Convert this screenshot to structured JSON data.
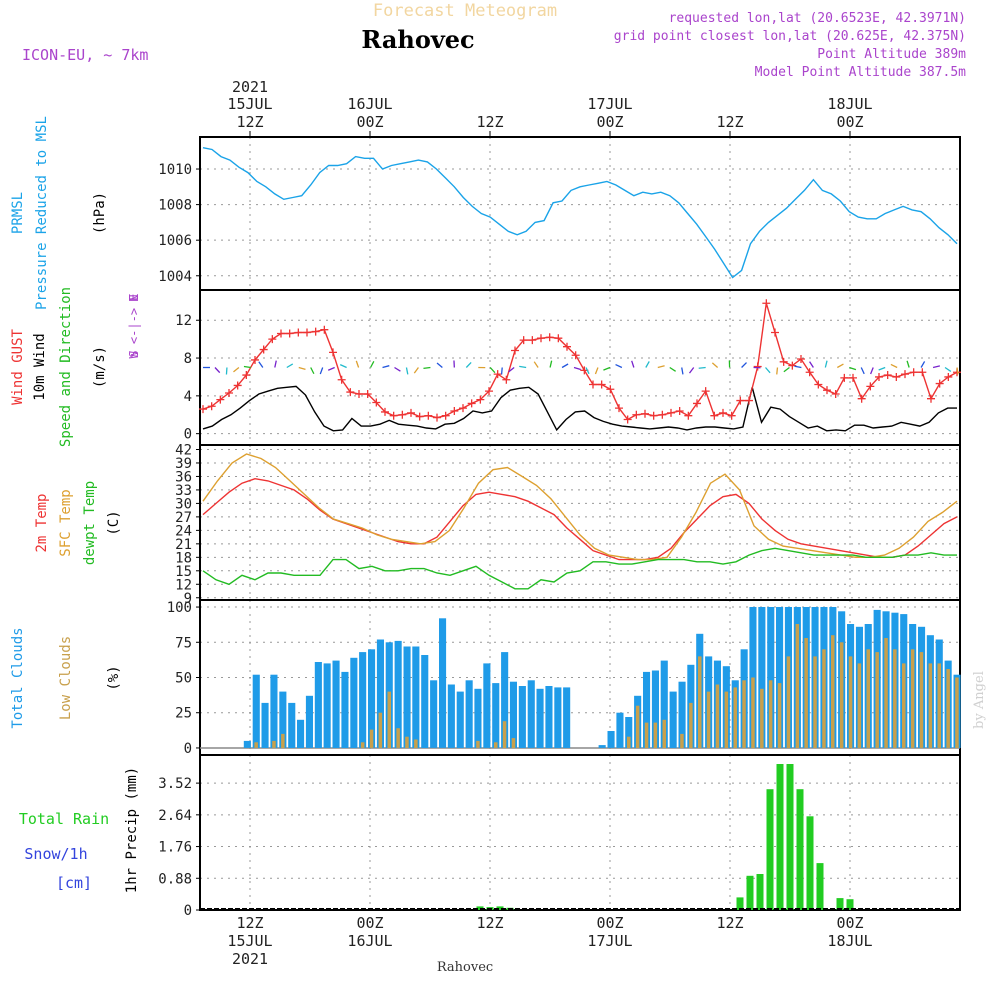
{
  "header": {
    "title": "Forecast Meteogram",
    "location": "Rahovec",
    "model": "ICON-EU, ~ 7km",
    "requested": "requested lon,lat (20.6523E, 42.3971N)",
    "grid": "grid point closest lon,lat (20.625E, 42.375N)",
    "point_alt": "Point Altitude 389m",
    "model_alt": "Model Point Altitude 387.5m",
    "footer": "Rahovec",
    "credit": "by Angel"
  },
  "colors": {
    "pressure": "#1aa3e8",
    "gust": "#ee3333",
    "wind": "#000000",
    "wind_green": "#22bb22",
    "temp2m": "#ee3333",
    "sfc": "#dda030",
    "dew": "#22bb22",
    "cloud_total": "#1f9be8",
    "cloud_low": "#c8a04c",
    "rain": "#22cc22",
    "snow": "#3344dd",
    "purple": "#aa44cc"
  },
  "time_axis": {
    "top": [
      {
        "t": 0,
        "l1": "2021",
        "l2": "15JUL",
        "l3": "12Z"
      },
      {
        "t": 12,
        "l2": "16JUL",
        "l3": "00Z"
      },
      {
        "t": 24,
        "l3": "12Z"
      },
      {
        "t": 36,
        "l2": "17JUL",
        "l3": "00Z"
      },
      {
        "t": 48,
        "l3": "12Z"
      },
      {
        "t": 60,
        "l2": "18JUL",
        "l3": "00Z"
      }
    ],
    "bottom": [
      {
        "t": 0,
        "l1": "12Z",
        "l2": "15JUL",
        "l3": "2021"
      },
      {
        "t": 12,
        "l1": "00Z",
        "l2": "16JUL"
      },
      {
        "t": 24,
        "l1": "12Z"
      },
      {
        "t": 36,
        "l1": "00Z",
        "l2": "17JUL"
      },
      {
        "t": 48,
        "l1": "12Z"
      },
      {
        "t": 60,
        "l1": "00Z",
        "l2": "18JUL"
      }
    ]
  },
  "chart_data": [
    {
      "type": "line",
      "panel": "pressure",
      "ylabel_lines": [
        "PRMSL",
        "Pressure Reduced to MSL"
      ],
      "unit": "(hPa)",
      "ylim": [
        1003.2,
        1011.8
      ],
      "yticks": [
        1004,
        1006,
        1008,
        1010
      ],
      "x_hours_start": -5,
      "x_hours_end": 71,
      "series": [
        {
          "values": [
            1011.2,
            1011.1,
            1010.7,
            1010.5,
            1010.1,
            1009.8,
            1009.3,
            1009.0,
            1008.6,
            1008.3,
            1008.4,
            1008.5,
            1009.1,
            1009.8,
            1010.2,
            1010.2,
            1010.3,
            1010.7,
            1010.6,
            1010.6,
            1010.0,
            1010.2,
            1010.3,
            1010.4,
            1010.5,
            1010.4,
            1010.0,
            1009.5,
            1009.0,
            1008.4,
            1007.9,
            1007.5,
            1007.3,
            1006.9,
            1006.5,
            1006.3,
            1006.5,
            1007.0,
            1007.1,
            1008.1,
            1008.2,
            1008.8,
            1009.0,
            1009.1,
            1009.2,
            1009.3,
            1009.1,
            1008.8,
            1008.5,
            1008.7,
            1008.6,
            1008.7,
            1008.5,
            1008.1,
            1007.5,
            1006.9,
            1006.2,
            1005.5,
            1004.7,
            1003.9,
            1004.3,
            1005.8,
            1006.5,
            1007.0,
            1007.4,
            1007.8,
            1008.3,
            1008.8,
            1009.4,
            1008.8,
            1008.6,
            1008.2,
            1007.6,
            1007.3,
            1007.2,
            1007.2,
            1007.5,
            1007.7,
            1007.9,
            1007.7,
            1007.6,
            1007.2,
            1006.7,
            1006.3,
            1005.8
          ]
        }
      ]
    },
    {
      "type": "line",
      "panel": "wind",
      "ylabel_lines": [
        "Wind GUST",
        "10m Wind",
        "Speed and Direction"
      ],
      "unit": "(m/s)",
      "compass": [
        "N",
        "W <-|-> E",
        "S"
      ],
      "ylim": [
        -1.2,
        15.2
      ],
      "yticks": [
        0,
        4,
        8,
        12
      ],
      "series": [
        {
          "name": "Wind GUST",
          "values": [
            2.6,
            2.9,
            3.6,
            4.3,
            5.1,
            6.2,
            7.8,
            8.9,
            10.0,
            10.6,
            10.6,
            10.7,
            10.7,
            10.8,
            11.0,
            8.6,
            5.7,
            4.4,
            4.2,
            4.2,
            3.3,
            2.3,
            1.9,
            2.0,
            2.2,
            1.8,
            1.9,
            1.7,
            1.9,
            2.4,
            2.7,
            3.2,
            3.6,
            4.5,
            6.3,
            5.7,
            8.8,
            9.9,
            9.9,
            10.1,
            10.2,
            10.1,
            9.2,
            8.3,
            6.7,
            5.2,
            5.2,
            4.7,
            2.7,
            1.5,
            2.0,
            2.1,
            1.9,
            2.0,
            2.2,
            2.4,
            1.9,
            3.2,
            4.5,
            1.9,
            2.2,
            1.9,
            3.5,
            3.5,
            7.1,
            13.8,
            10.7,
            7.6,
            7.2,
            7.9,
            6.5,
            5.2,
            4.6,
            4.2,
            5.9,
            5.9,
            3.7,
            5.0,
            6.0,
            6.2,
            6.0,
            6.3,
            6.5,
            6.5,
            3.7,
            5.3,
            6.0,
            6.5
          ]
        },
        {
          "name": "10m Wind",
          "values": [
            0.5,
            0.8,
            1.5,
            2.0,
            2.7,
            3.5,
            4.2,
            4.5,
            4.8,
            4.9,
            5.0,
            4.1,
            2.3,
            0.8,
            0.3,
            0.4,
            1.6,
            0.8,
            0.8,
            1.0,
            1.4,
            1.0,
            0.9,
            0.8,
            0.6,
            0.5,
            1.0,
            1.1,
            1.6,
            2.4,
            2.2,
            2.4,
            3.8,
            4.6,
            4.8,
            4.9,
            4.2,
            2.3,
            0.4,
            1.5,
            2.3,
            2.4,
            1.7,
            1.3,
            1.0,
            0.8,
            0.7,
            0.6,
            0.5,
            0.6,
            0.7,
            0.6,
            0.4,
            0.6,
            0.7,
            0.7,
            0.6,
            0.5,
            0.7,
            4.9,
            1.2,
            2.8,
            2.6,
            1.8,
            1.2,
            0.6,
            0.8,
            0.3,
            0.4,
            0.3,
            0.9,
            0.9,
            0.6,
            0.7,
            0.8,
            1.2,
            1.0,
            0.8,
            1.2,
            2.2,
            2.7,
            2.7
          ]
        }
      ]
    },
    {
      "type": "line",
      "panel": "temperature",
      "ylabel_lines": [
        "2m Temp",
        "SFC Temp",
        "dewpt Temp"
      ],
      "unit": "(C)",
      "ylim": [
        8.5,
        43
      ],
      "yticks": [
        9,
        12,
        15,
        18,
        21,
        24,
        27,
        30,
        33,
        36,
        39,
        42
      ],
      "series": [
        {
          "name": "2m Temp",
          "values": [
            27.5,
            30.0,
            32.5,
            34.5,
            35.5,
            35.0,
            34.0,
            33.0,
            31.0,
            28.5,
            26.5,
            25.5,
            24.5,
            23.5,
            22.5,
            21.5,
            21.0,
            21.0,
            22.5,
            26.0,
            29.5,
            32.0,
            32.5,
            32.0,
            31.5,
            30.5,
            29.0,
            27.5,
            24.5,
            22.0,
            19.5,
            18.5,
            17.5,
            17.5,
            17.5,
            18.0,
            20.0,
            23.5,
            26.5,
            29.5,
            31.5,
            32.0,
            30.0,
            26.5,
            24.0,
            22.0,
            21.0,
            20.5,
            20.0,
            19.5,
            19.0,
            18.5,
            18.0,
            18.0,
            18.5,
            20.5,
            23.0,
            25.5,
            27.0
          ]
        },
        {
          "name": "SFC Temp",
          "values": [
            30.5,
            35.0,
            39.0,
            41.0,
            40.0,
            38.0,
            35.0,
            32.0,
            29.0,
            26.5,
            25.5,
            24.5,
            23.0,
            22.0,
            21.5,
            21.0,
            21.5,
            24.0,
            29.0,
            34.5,
            37.5,
            38.0,
            36.0,
            34.0,
            31.0,
            27.0,
            23.0,
            20.0,
            18.5,
            18.0,
            17.5,
            17.5,
            18.0,
            22.5,
            28.0,
            34.5,
            36.5,
            33.0,
            25.0,
            22.0,
            20.5,
            20.0,
            19.5,
            19.0,
            18.5,
            18.0,
            18.0,
            18.5,
            20.0,
            22.5,
            26.0,
            28.0,
            30.5
          ]
        },
        {
          "name": "dewpt Temp",
          "values": [
            15.0,
            13.0,
            12.0,
            14.0,
            13.0,
            14.5,
            14.5,
            14.0,
            14.0,
            14.0,
            17.5,
            17.5,
            15.5,
            16.0,
            15.0,
            15.0,
            15.5,
            15.5,
            14.5,
            14.0,
            15.0,
            16.0,
            14.0,
            12.5,
            11.0,
            11.0,
            13.0,
            12.5,
            14.5,
            15.0,
            17.0,
            17.0,
            16.5,
            16.5,
            17.0,
            17.5,
            17.5,
            17.5,
            17.0,
            17.0,
            16.5,
            17.0,
            18.5,
            19.5,
            20.0,
            19.5,
            19.0,
            18.5,
            18.5,
            18.5,
            18.5,
            18.0,
            18.0,
            18.0,
            18.5,
            18.5,
            19.0,
            18.5,
            18.5
          ]
        }
      ]
    },
    {
      "type": "bar",
      "panel": "clouds",
      "ylabel_lines": [
        "Total Clouds",
        "Low Clouds"
      ],
      "unit": "(%)",
      "ylim": [
        -5,
        105
      ],
      "yticks": [
        0,
        25,
        50,
        75,
        100
      ],
      "series": [
        {
          "name": "Total Clouds",
          "values": [
            0,
            0,
            0,
            0,
            0,
            5,
            52,
            32,
            52,
            40,
            32,
            20,
            37,
            61,
            60,
            62,
            54,
            64,
            68,
            70,
            77,
            75,
            76,
            72,
            72,
            66,
            48,
            92,
            45,
            40,
            48,
            42,
            60,
            46,
            68,
            47,
            44,
            48,
            42,
            44,
            43,
            43,
            0,
            0,
            0,
            2,
            12,
            25,
            22,
            37,
            54,
            55,
            62,
            40,
            47,
            59,
            81,
            65,
            62,
            58,
            48,
            70,
            100,
            100,
            100,
            100,
            100,
            100,
            100,
            100,
            100,
            100,
            97,
            88,
            86,
            88,
            98,
            97,
            96,
            95,
            88,
            86,
            80,
            77,
            62,
            52
          ]
        },
        {
          "name": "Low Clouds",
          "values": [
            0,
            0,
            0,
            0,
            0,
            0,
            4,
            0,
            5,
            10,
            0,
            0,
            0,
            0,
            0,
            0,
            0,
            0,
            4,
            13,
            25,
            40,
            14,
            8,
            6,
            0,
            0,
            0,
            0,
            0,
            0,
            5,
            0,
            4,
            19,
            7,
            0,
            0,
            0,
            0,
            0,
            0,
            0,
            0,
            0,
            0,
            0,
            0,
            8,
            30,
            18,
            18,
            20,
            0,
            10,
            32,
            65,
            40,
            45,
            40,
            43,
            48,
            50,
            42,
            48,
            46,
            65,
            88,
            78,
            65,
            70,
            80,
            75,
            65,
            60,
            70,
            68,
            78,
            70,
            60,
            70,
            68,
            60,
            60,
            56,
            50,
            40
          ]
        }
      ]
    },
    {
      "type": "bar",
      "panel": "precip",
      "ylabel_lines": [
        "Total Rain",
        "Snow/1h",
        "[cm]"
      ],
      "unit": "1hr Precip (mm)",
      "ylim": [
        0,
        4.3
      ],
      "yticks": [
        0,
        0.88,
        1.76,
        2.64,
        3.52
      ],
      "ytick_labels": [
        "0",
        "0.88",
        "1.76",
        "2.64",
        "3.52"
      ],
      "bars": [
        {
          "t": 23,
          "v": 0.1
        },
        {
          "t": 24,
          "v": 0.08
        },
        {
          "t": 25,
          "v": 0.1
        },
        {
          "t": 26,
          "v": 0.06
        },
        {
          "t": 49,
          "v": 0.35
        },
        {
          "t": 50,
          "v": 0.95
        },
        {
          "t": 51,
          "v": 1.0
        },
        {
          "t": 52,
          "v": 3.35
        },
        {
          "t": 53,
          "v": 4.05
        },
        {
          "t": 54,
          "v": 4.05
        },
        {
          "t": 55,
          "v": 3.35
        },
        {
          "t": 56,
          "v": 2.6
        },
        {
          "t": 57,
          "v": 1.3
        },
        {
          "t": 59,
          "v": 0.33
        },
        {
          "t": 60,
          "v": 0.3
        }
      ]
    }
  ]
}
